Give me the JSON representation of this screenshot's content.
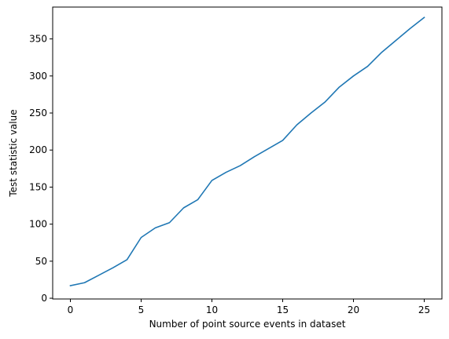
{
  "chart_data": {
    "type": "line",
    "title": "",
    "xlabel": "Number of point source events in dataset",
    "ylabel": "Test statistic value",
    "xlim": [
      -1.25,
      26.25
    ],
    "ylim": [
      -1,
      393
    ],
    "xticks": [
      0,
      5,
      10,
      15,
      20,
      25
    ],
    "yticks": [
      0,
      50,
      100,
      150,
      200,
      250,
      300,
      350
    ],
    "grid": false,
    "legend": "none",
    "series": [
      {
        "color": "#1f77b4",
        "x": [
          0,
          1,
          2,
          3,
          4,
          5,
          6,
          7,
          8,
          9,
          10,
          11,
          12,
          13,
          14,
          15,
          16,
          17,
          18,
          19,
          20,
          21,
          22,
          23,
          24,
          25
        ],
        "y": [
          17,
          21,
          31,
          41,
          52,
          82,
          95,
          102,
          122,
          133,
          159,
          170,
          179,
          191,
          202,
          213,
          234,
          250,
          265,
          285,
          300,
          313,
          332,
          348,
          364,
          379
        ]
      }
    ]
  }
}
